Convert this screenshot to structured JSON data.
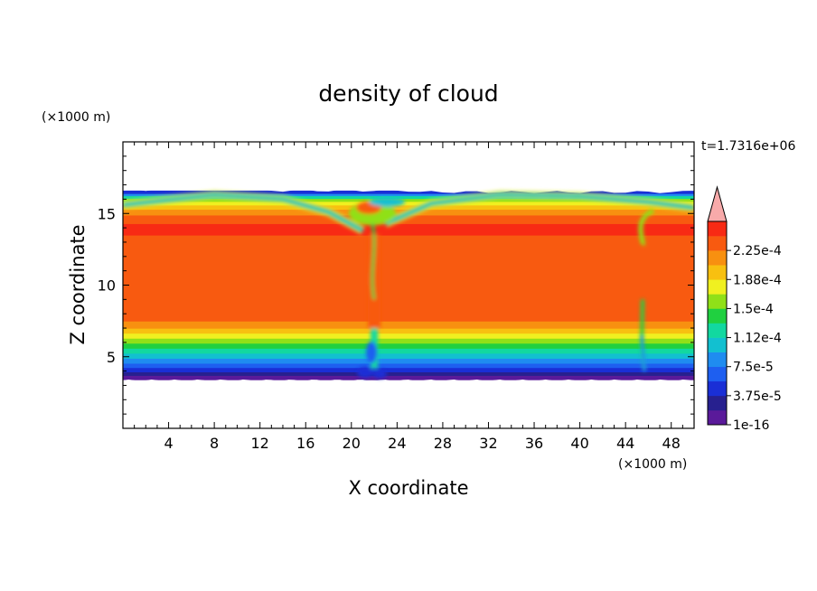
{
  "chart_data": {
    "type": "heatmap",
    "title": "density of cloud",
    "xlabel": "X coordinate",
    "ylabel": "Z coordinate",
    "x_unit": "(×1000 m)",
    "z_unit": "(×1000 m)",
    "time_label": "t=1.7316e+06",
    "xlim": [
      0,
      50
    ],
    "ylim": [
      0,
      20
    ],
    "x_ticks": [
      4,
      8,
      12,
      16,
      20,
      24,
      28,
      32,
      36,
      40,
      44,
      48
    ],
    "y_ticks": [
      5,
      10,
      15
    ],
    "cloud_layer": {
      "base_z": 3.4,
      "top_z": 16.6,
      "core_z_range": [
        7.0,
        13.5
      ]
    },
    "updraft_columns": [
      {
        "x_center": 22.0,
        "z_range": [
          3.3,
          16.0
        ]
      },
      {
        "x_center": 45.5,
        "z_range": [
          4.0,
          15.5
        ]
      }
    ],
    "colorbar": {
      "levels": [
        {
          "value": 1e-16,
          "label": "1e-16",
          "color": "#5a1a9a"
        },
        {
          "value": 1.875e-05,
          "label": "",
          "color": "#27208f"
        },
        {
          "value": 3.75e-05,
          "label": "3.75e-5",
          "color": "#1a2fd6"
        },
        {
          "value": 5.625e-05,
          "label": "",
          "color": "#1e5ff0"
        },
        {
          "value": 7.5e-05,
          "label": "7.5e-5",
          "color": "#1f8cf0"
        },
        {
          "value": 9.375e-05,
          "label": "",
          "color": "#12c0d0"
        },
        {
          "value": 0.0001125,
          "label": "1.12e-4",
          "color": "#12d8a0"
        },
        {
          "value": 0.00013125,
          "label": "",
          "color": "#20d040"
        },
        {
          "value": 0.00015,
          "label": "1.5e-4",
          "color": "#90e018"
        },
        {
          "value": 0.00016875,
          "label": "",
          "color": "#f0f020"
        },
        {
          "value": 0.0001875,
          "label": "1.88e-4",
          "color": "#f8c010"
        },
        {
          "value": 0.00020625,
          "label": "",
          "color": "#f89010"
        },
        {
          "value": 0.000225,
          "label": "2.25e-4",
          "color": "#f85a10"
        },
        {
          "value": 0.00024375,
          "label": "",
          "color": "#f82a14"
        }
      ],
      "overflow_color": "#f8aaaa"
    }
  }
}
